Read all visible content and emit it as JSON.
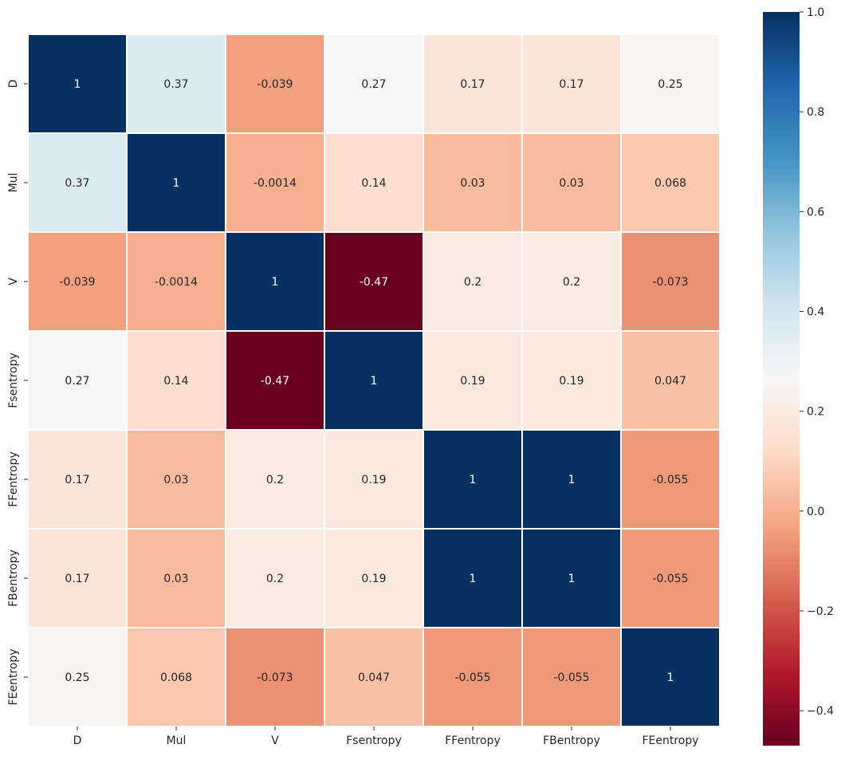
{
  "chart_data": {
    "type": "heatmap",
    "title": "",
    "xlabel": "",
    "ylabel": "",
    "rows": [
      "D",
      "Mul",
      "V",
      "Fsentropy",
      "FFentropy",
      "FBentropy",
      "FEentropy"
    ],
    "columns": [
      "D",
      "Mul",
      "V",
      "Fsentropy",
      "FFentropy",
      "FBentropy",
      "FEentropy"
    ],
    "values": [
      [
        1,
        0.37,
        -0.039,
        0.27,
        0.17,
        0.17,
        0.25
      ],
      [
        0.37,
        1,
        -0.0014,
        0.14,
        0.03,
        0.03,
        0.068
      ],
      [
        -0.039,
        -0.0014,
        1,
        -0.47,
        0.2,
        0.2,
        -0.073
      ],
      [
        0.27,
        0.14,
        -0.47,
        1,
        0.19,
        0.19,
        0.047
      ],
      [
        0.17,
        0.03,
        0.2,
        0.19,
        1,
        1,
        -0.055
      ],
      [
        0.17,
        0.03,
        0.2,
        0.19,
        1,
        1,
        -0.055
      ],
      [
        0.25,
        0.068,
        -0.073,
        0.047,
        -0.055,
        -0.055,
        1
      ]
    ],
    "labels": [
      [
        "1",
        "0.37",
        "-0.039",
        "0.27",
        "0.17",
        "0.17",
        "0.25"
      ],
      [
        "0.37",
        "1",
        "-0.0014",
        "0.14",
        "0.03",
        "0.03",
        "0.068"
      ],
      [
        "-0.039",
        "-0.0014",
        "1",
        "-0.47",
        "0.2",
        "0.2",
        "-0.073"
      ],
      [
        "0.27",
        "0.14",
        "-0.47",
        "1",
        "0.19",
        "0.19",
        "0.047"
      ],
      [
        "0.17",
        "0.03",
        "0.2",
        "0.19",
        "1",
        "1",
        "-0.055"
      ],
      [
        "0.17",
        "0.03",
        "0.2",
        "0.19",
        "1",
        "1",
        "-0.055"
      ],
      [
        "0.25",
        "0.068",
        "-0.073",
        "0.047",
        "-0.055",
        "-0.055",
        "1"
      ]
    ],
    "colormap": "RdBu",
    "vmin": -0.47,
    "vmax": 1.0,
    "colorbar_ticks": [
      "1.0",
      "0.8",
      "0.6",
      "0.4",
      "0.2",
      "0.0",
      "−0.2",
      "−0.4"
    ],
    "colorbar_tick_values": [
      1.0,
      0.8,
      0.6,
      0.4,
      0.2,
      0.0,
      -0.2,
      -0.4
    ],
    "grid_line_color": "#ffffff",
    "colormap_stops": [
      "#67001f",
      "#b2182b",
      "#d6604d",
      "#f4a582",
      "#fddbc7",
      "#f7f7f7",
      "#d1e5f0",
      "#92c5de",
      "#4393c3",
      "#2166ac",
      "#053061"
    ]
  }
}
